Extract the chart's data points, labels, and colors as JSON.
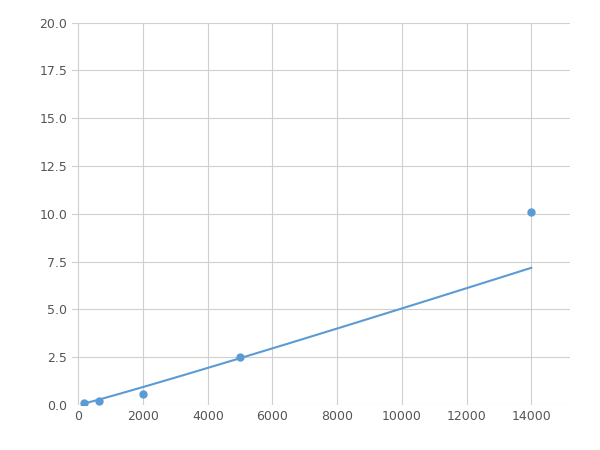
{
  "x": [
    156,
    625,
    2000,
    5000,
    14000
  ],
  "y": [
    0.1,
    0.2,
    0.6,
    2.5,
    10.1
  ],
  "line_color": "#5B9BD5",
  "marker_color": "#5B9BD5",
  "marker_size": 5,
  "xlim": [
    -200,
    15200
  ],
  "ylim": [
    0,
    20
  ],
  "xticks": [
    0,
    2000,
    4000,
    6000,
    8000,
    10000,
    12000,
    14000
  ],
  "yticks": [
    0.0,
    2.5,
    5.0,
    7.5,
    10.0,
    12.5,
    15.0,
    17.5,
    20.0
  ],
  "grid_color": "#D0D0D0",
  "background_color": "#ffffff",
  "figsize": [
    6.0,
    4.5
  ],
  "dpi": 100
}
